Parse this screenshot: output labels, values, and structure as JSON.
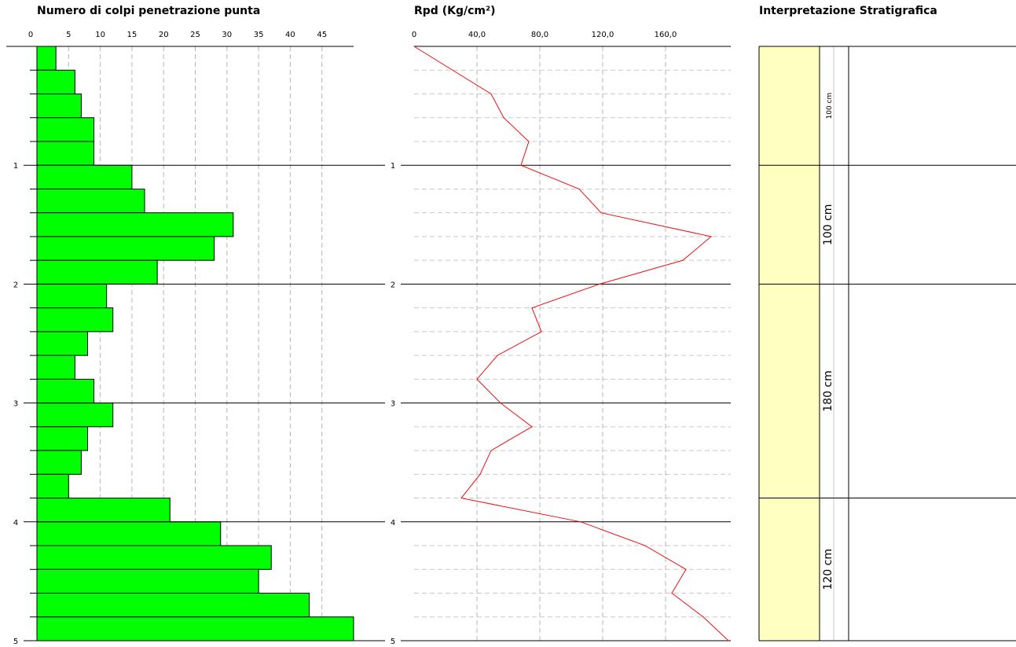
{
  "chart_data": [
    {
      "type": "bar",
      "title": "Numero di colpi penetrazione punta",
      "x_ticks": [
        0,
        5,
        10,
        15,
        20,
        25,
        30,
        35,
        40,
        45
      ],
      "depth_ticks": [
        1,
        2,
        3,
        4,
        5
      ],
      "depth_range": [
        0,
        5
      ],
      "depth_step": 0.2,
      "values": [
        3,
        6,
        7,
        9,
        9,
        15,
        17,
        31,
        28,
        19,
        11,
        12,
        8,
        6,
        9,
        12,
        8,
        7,
        5,
        21,
        29,
        37,
        35,
        43,
        50
      ],
      "bar_color": "#00ff00",
      "grid": "dashed-vertical"
    },
    {
      "type": "line",
      "title": "Rpd (Kg/cm²)",
      "x_ticks": [
        "0",
        "40,0",
        "80,0",
        "120,0",
        "160,0"
      ],
      "x_tick_values": [
        0,
        40,
        80,
        120,
        160
      ],
      "depth_ticks": [
        1,
        2,
        3,
        4,
        5
      ],
      "depth_range": [
        0,
        5
      ],
      "depth": [
        0,
        0.4,
        0.6,
        0.8,
        1.0,
        1.2,
        1.4,
        1.6,
        1.8,
        2.0,
        2.2,
        2.4,
        2.6,
        2.8,
        3.0,
        3.2,
        3.4,
        3.6,
        3.8,
        4.0,
        4.2,
        4.4,
        4.6,
        4.8,
        5.0
      ],
      "values": [
        0,
        49,
        57,
        73,
        68,
        105,
        119,
        189,
        171,
        118,
        75,
        81,
        53,
        40,
        55,
        75,
        49,
        42,
        30,
        106,
        147,
        173,
        164,
        184,
        200
      ],
      "line_color": "#ee1111",
      "grid": "dashed"
    },
    {
      "type": "table",
      "title": "Interpretazione Stratigrafica",
      "layers": [
        {
          "label": "100 cm",
          "top": 0.0,
          "bottom": 1.0
        },
        {
          "label": "100 cm",
          "top": 1.0,
          "bottom": 2.0
        },
        {
          "label": "180 cm",
          "top": 2.0,
          "bottom": 3.8
        },
        {
          "label": "120 cm",
          "top": 3.8,
          "bottom": 5.0
        }
      ],
      "fill_color": "#ffffc0"
    }
  ]
}
